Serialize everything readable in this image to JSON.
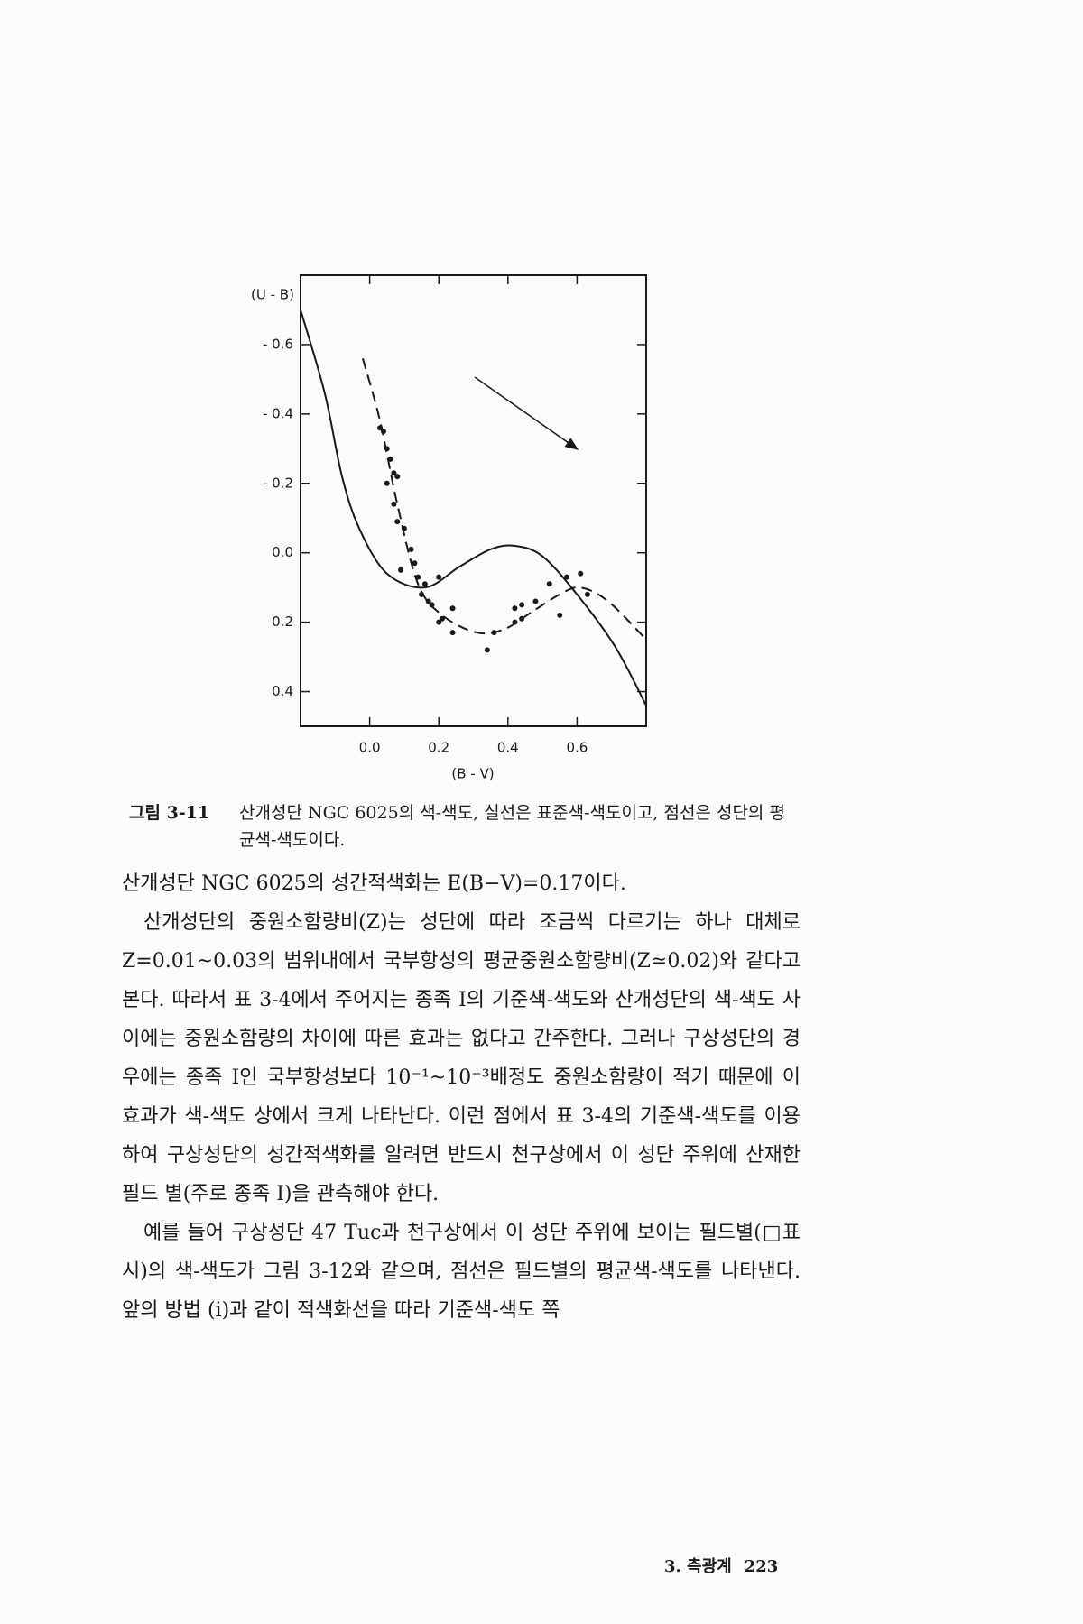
{
  "chart_data": {
    "type": "line",
    "y_label": "(U - B)",
    "x_label": "(B - V)",
    "xlim": [
      -0.2,
      0.8
    ],
    "ylim": [
      -0.8,
      0.5
    ],
    "y_inverted": true,
    "xticks": [
      {
        "value": 0,
        "label": "0.0"
      },
      0.2,
      0.4,
      0.6
    ],
    "yticks": [
      {
        "value": -0.6,
        "label": "- 0.6"
      },
      {
        "value": -0.4,
        "label": "- 0.4"
      },
      {
        "value": -0.2,
        "label": "- 0.2"
      },
      {
        "value": 0,
        "label": "0.0"
      },
      0.2,
      0.4
    ],
    "color": "#1a1a1a",
    "series": [
      {
        "type": "line",
        "dash": false,
        "x": [
          -0.2,
          -0.13,
          -0.08,
          -0.03,
          0.05,
          0.16,
          0.26,
          0.35,
          0.42,
          0.5,
          0.6,
          0.71,
          0.8
        ],
        "values": [
          -0.7,
          -0.46,
          -0.22,
          -0.07,
          0.06,
          0.1,
          0.04,
          -0.01,
          -0.02,
          0.01,
          0.12,
          0.27,
          0.44
        ]
      },
      {
        "type": "line",
        "dash": true,
        "x": [
          -0.02,
          0.03,
          0.08,
          0.14,
          0.21,
          0.31,
          0.39,
          0.47,
          0.55,
          0.61,
          0.69,
          0.8
        ],
        "values": [
          -0.56,
          -0.38,
          -0.14,
          0.09,
          0.18,
          0.23,
          0.22,
          0.17,
          0.12,
          0.1,
          0.14,
          0.25
        ]
      },
      {
        "type": "scatter",
        "x": [
          0.03,
          0.04,
          0.05,
          0.06,
          0.07,
          0.05,
          0.08,
          0.07,
          0.08,
          0.1,
          0.09,
          0.12,
          0.13,
          0.14,
          0.16,
          0.15,
          0.2,
          0.17,
          0.18,
          0.24,
          0.2,
          0.21,
          0.24,
          0.36,
          0.34,
          0.42,
          0.44,
          0.42,
          0.44,
          0.48,
          0.52,
          0.55,
          0.57,
          0.61,
          0.63
        ],
        "values": [
          -0.36,
          -0.35,
          -0.3,
          -0.27,
          -0.23,
          -0.2,
          -0.22,
          -0.14,
          -0.09,
          -0.07,
          0.05,
          -0.01,
          0.03,
          0.07,
          0.09,
          0.12,
          0.07,
          0.14,
          0.15,
          0.16,
          0.2,
          0.19,
          0.23,
          0.23,
          0.28,
          0.16,
          0.15,
          0.2,
          0.19,
          0.14,
          0.09,
          0.18,
          0.07,
          0.06,
          0.12
        ]
      }
    ]
  },
  "caption": {
    "label": "그림 3-11",
    "text": "산개성단 NGC 6025의 색-색도, 실선은 표준색-색도이고, 점선은 성단의 평균색-색도이다."
  },
  "paragraphs": [
    "산개성단 NGC 6025의 성간적색화는 E(B−V)=0.17이다.",
    "산개성단의 중원소함량비(Z)는 성단에 따라 조금씩 다르기는 하나 대체로 Z=0.01~0.03의 범위내에서 국부항성의 평균중원소함량비(Z≃0.02)와 같다고 본다. 따라서 표 3-4에서 주어지는 종족 I의 기준색-색도와 산개성단의 색-색도 사이에는 중원소함량의 차이에 따른 효과는 없다고 간주한다. 그러나 구상성단의 경우에는 종족 I인 국부항성보다 10⁻¹~10⁻³배정도 중원소함량이 적기 때문에 이 효과가 색-색도 상에서 크게 나타난다. 이런 점에서 표 3-4의 기준색-색도를 이용하여 구상성단의 성간적색화를 알려면 반드시 천구상에서 이 성단 주위에 산재한 필드 별(주로 종족 I)을 관측해야 한다.",
    "예를 들어 구상성단 47 Tuc과 천구상에서 이 성단 주위에 보이는 필드별(□표시)의 색-색도가 그림 3-12와 같으며, 점선은 필드별의 평균색-색도를 나타낸다. 앞의 방법 (i)과 같이 적색화선을 따라 기준색-색도 쪽"
  ],
  "footer": {
    "section": "3. 측광계",
    "page": "223"
  }
}
